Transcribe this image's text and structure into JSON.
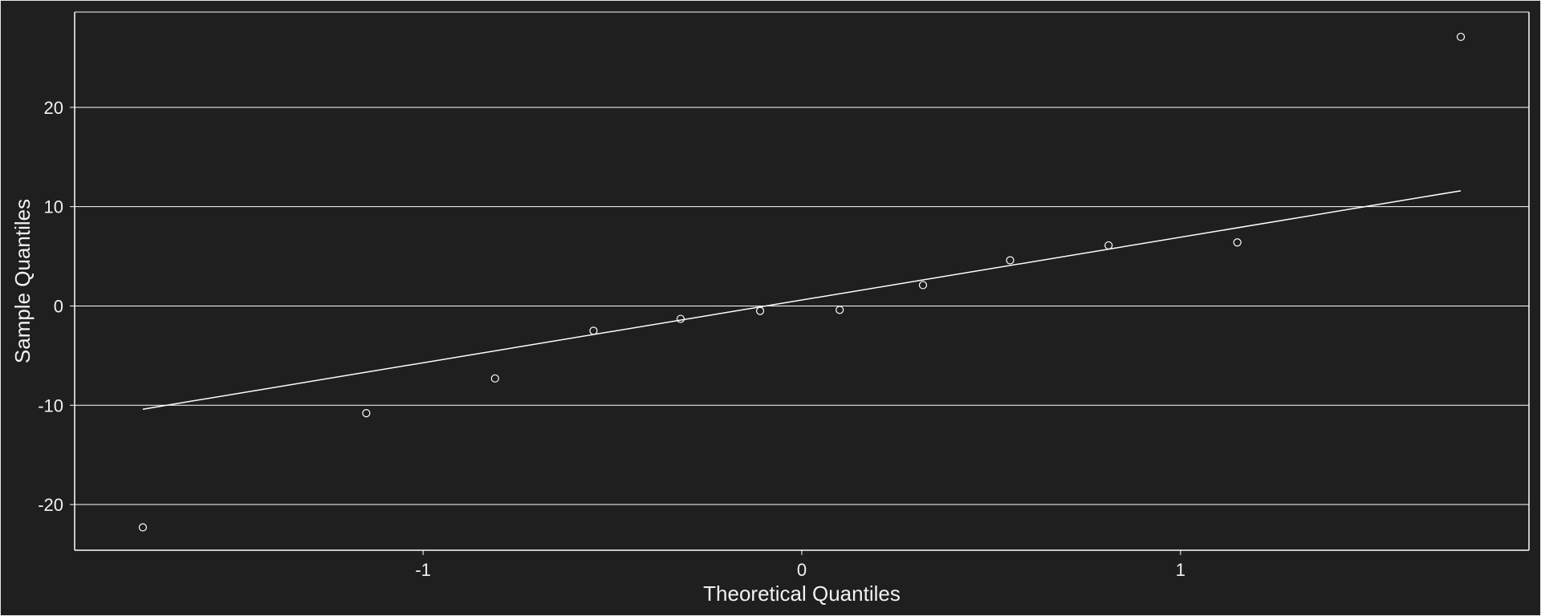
{
  "colors": {
    "background": "#1f1f1f",
    "foreground": "#ffffff",
    "gridline": "#ffffff"
  },
  "chart_data": {
    "type": "scatter",
    "title": "",
    "xlabel": "Theoretical Quantiles",
    "ylabel": "Sample Quantiles",
    "xlim": [
      -1.92,
      1.92
    ],
    "ylim": [
      -24.6,
      29.6
    ],
    "grid": "horizontal",
    "legend": "none",
    "x_ticks": [
      -1,
      0,
      1
    ],
    "y_ticks": [
      -20,
      -10,
      0,
      10,
      20
    ],
    "series": [
      {
        "x": [
          -1.74,
          -1.15,
          -0.81,
          -0.55,
          -0.32,
          -0.11,
          0.1,
          0.32,
          0.55,
          0.81,
          1.15,
          1.74
        ],
        "y": [
          -22.3,
          -10.8,
          -7.3,
          -2.5,
          -1.3,
          -0.5,
          -0.4,
          2.1,
          4.6,
          6.1,
          6.4,
          27.1
        ]
      }
    ],
    "reference_line": {
      "x": [
        -1.74,
        1.74
      ],
      "y": [
        -10.4,
        11.6
      ]
    }
  }
}
